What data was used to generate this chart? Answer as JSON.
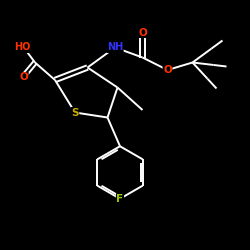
{
  "bg_color": "#000000",
  "bond_color": "#ffffff",
  "atom_colors": {
    "O": "#ff3300",
    "S": "#ccaa00",
    "N": "#3333ff",
    "F": "#99cc00",
    "H": "#ffffff",
    "C": "#ffffff"
  }
}
